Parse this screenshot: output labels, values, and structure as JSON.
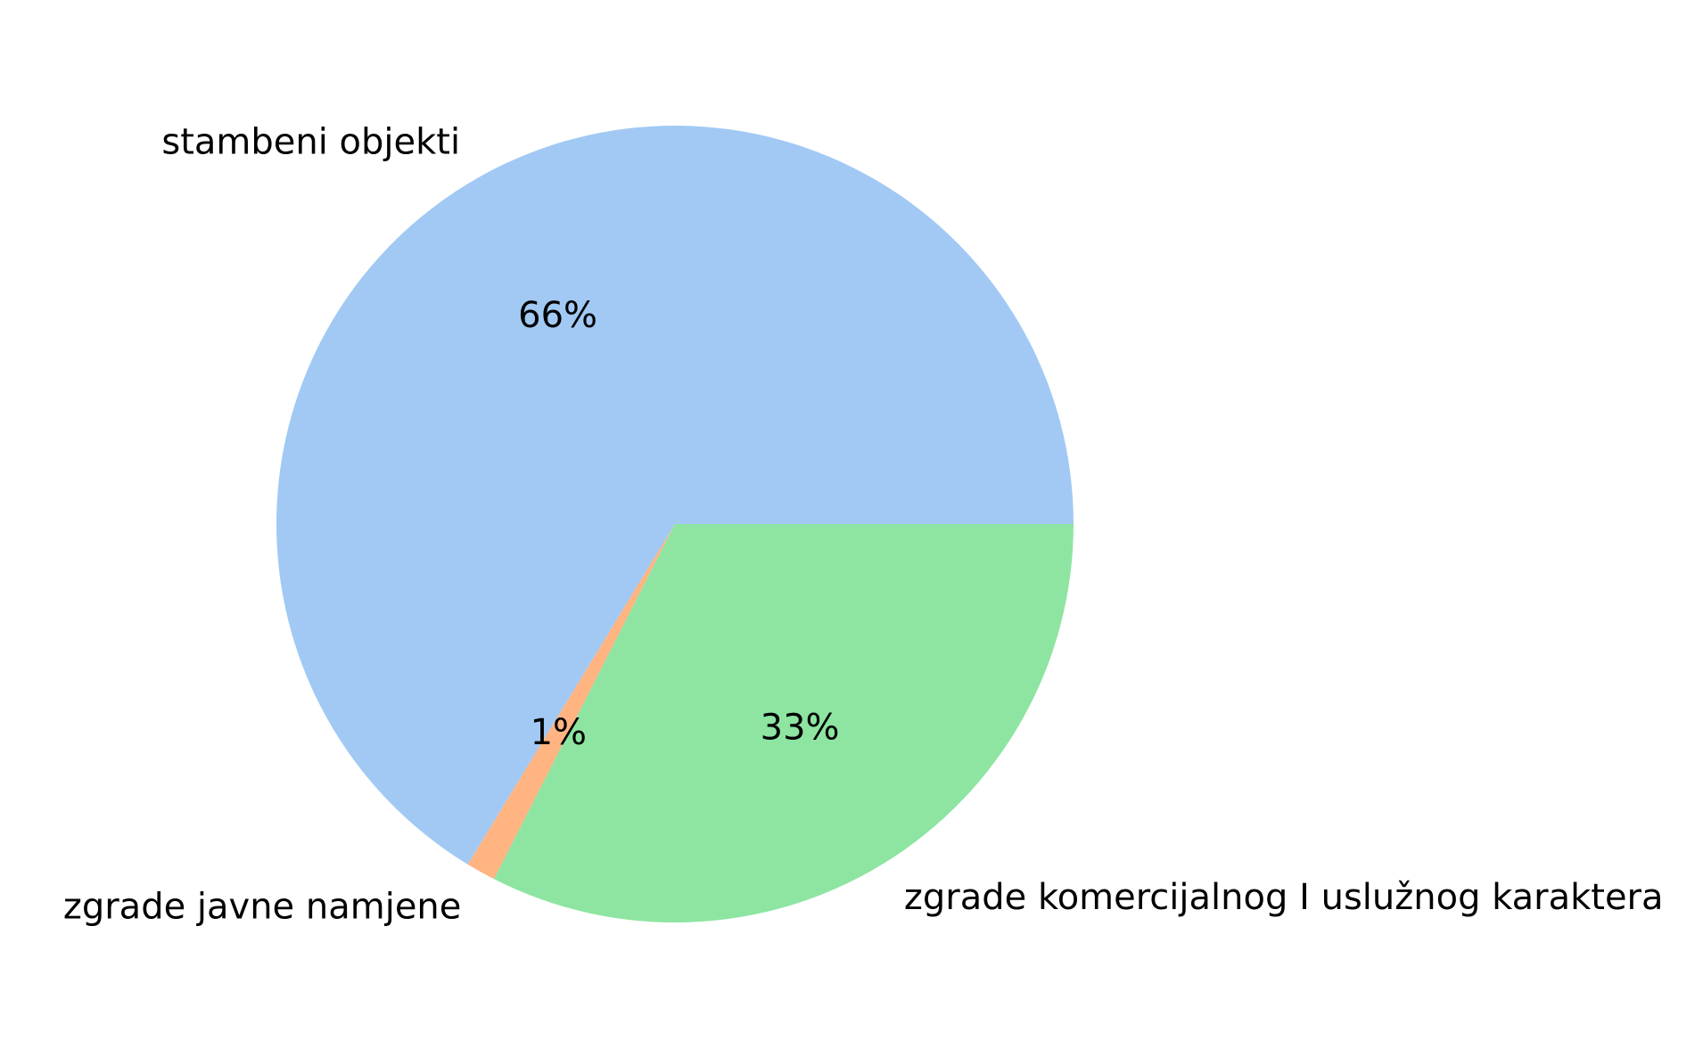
{
  "chart_data": {
    "type": "pie",
    "title": "",
    "slices": [
      {
        "label": "stambeni objekti",
        "value": 66.3,
        "pct_label": "66%",
        "color": "#a1c9f4"
      },
      {
        "label": "zgrade javne namjene",
        "value": 1.2,
        "pct_label": "1%",
        "color": "#ffb482"
      },
      {
        "label": "zgrade komercijalnog I uslužnog karaktera",
        "value": 32.5,
        "pct_label": "33%",
        "color": "#8de5a1"
      }
    ],
    "start_angle_deg": 0,
    "direction": "counterclockwise",
    "legend": "none"
  }
}
